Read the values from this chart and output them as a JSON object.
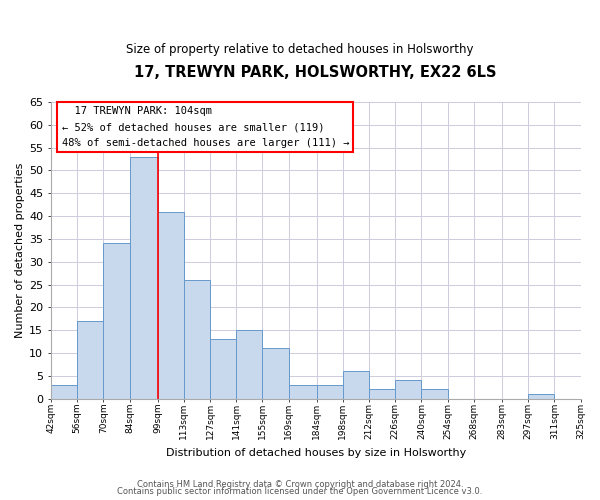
{
  "title": "17, TREWYN PARK, HOLSWORTHY, EX22 6LS",
  "subtitle": "Size of property relative to detached houses in Holsworthy",
  "xlabel": "Distribution of detached houses by size in Holsworthy",
  "ylabel": "Number of detached properties",
  "bin_edges": [
    42,
    56,
    70,
    84,
    99,
    113,
    127,
    141,
    155,
    169,
    184,
    198,
    212,
    226,
    240,
    254,
    268,
    283,
    297,
    311,
    325
  ],
  "bar_heights": [
    3,
    17,
    34,
    53,
    41,
    26,
    13,
    15,
    11,
    3,
    3,
    6,
    2,
    4,
    2,
    0,
    0,
    0,
    1,
    0
  ],
  "tick_labels": [
    "42sqm",
    "56sqm",
    "70sqm",
    "84sqm",
    "99sqm",
    "113sqm",
    "127sqm",
    "141sqm",
    "155sqm",
    "169sqm",
    "184sqm",
    "198sqm",
    "212sqm",
    "226sqm",
    "240sqm",
    "254sqm",
    "268sqm",
    "283sqm",
    "297sqm",
    "311sqm",
    "325sqm"
  ],
  "bar_color": "#c8d9ee",
  "bar_edge_color": "#6699cc",
  "red_line_x": 99,
  "ylim": [
    0,
    65
  ],
  "yticks": [
    0,
    5,
    10,
    15,
    20,
    25,
    30,
    35,
    40,
    45,
    50,
    55,
    60,
    65
  ],
  "annotation_title": "17 TREWYN PARK: 104sqm",
  "annotation_line1": "← 52% of detached houses are smaller (119)",
  "annotation_line2": "48% of semi-detached houses are larger (111) →",
  "footer1": "Contains HM Land Registry data © Crown copyright and database right 2024.",
  "footer2": "Contains public sector information licensed under the Open Government Licence v3.0.",
  "background_color": "#ffffff",
  "grid_color": "#ccccdd"
}
